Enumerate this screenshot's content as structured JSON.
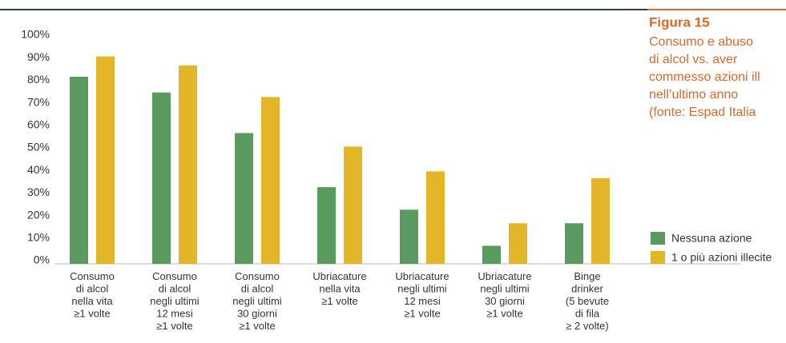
{
  "chart_data": {
    "type": "bar",
    "categories": [
      "Consumo\ndi alcol\nnella vita\n≥1 volte",
      "Consumo\ndi alcol\nnegli ultimi\n12 mesi\n≥1 volte",
      "Consumo\ndi alcol\nnegli ultimi\n30 giorni\n≥1 volte",
      "Ubriacature\nnella vita\n≥1 volte",
      "Ubriacature\nnegli ultimi\n12 mesi\n≥1 volte",
      "Ubriacature\nnegli ultimi\n30 giorni\n≥1 volte",
      "Binge\ndrinker\n(5 bevute\ndi fila\n≥ 2 volte)"
    ],
    "series": [
      {
        "name": "Nessuna azione",
        "color": "#5b9a5f",
        "values": [
          83,
          76,
          58,
          34,
          24,
          8,
          18
        ]
      },
      {
        "name": "1 o più azioni illecite",
        "color": "#e2b628",
        "values": [
          92,
          88,
          74,
          52,
          41,
          18,
          38
        ]
      }
    ],
    "ylim": [
      0,
      100
    ],
    "yticks": [
      {
        "value": 0,
        "label": "0%"
      },
      {
        "value": 10,
        "label": "10%"
      },
      {
        "value": 20,
        "label": "20%"
      },
      {
        "value": 30,
        "label": "30%"
      },
      {
        "value": 40,
        "label": "40%"
      },
      {
        "value": 50,
        "label": "50%"
      },
      {
        "value": 60,
        "label": "60%"
      },
      {
        "value": 70,
        "label": "70%"
      },
      {
        "value": 80,
        "label": "80%"
      },
      {
        "value": 90,
        "label": "90%"
      },
      {
        "value": 100,
        "label": "100%"
      }
    ],
    "figure_label": "Figura 15",
    "caption_lines": [
      "Consumo e abuso",
      "di alcol vs. aver",
      "commesso azioni ill",
      "nell’ultimo anno",
      "(fonte: Espad Italia"
    ]
  }
}
